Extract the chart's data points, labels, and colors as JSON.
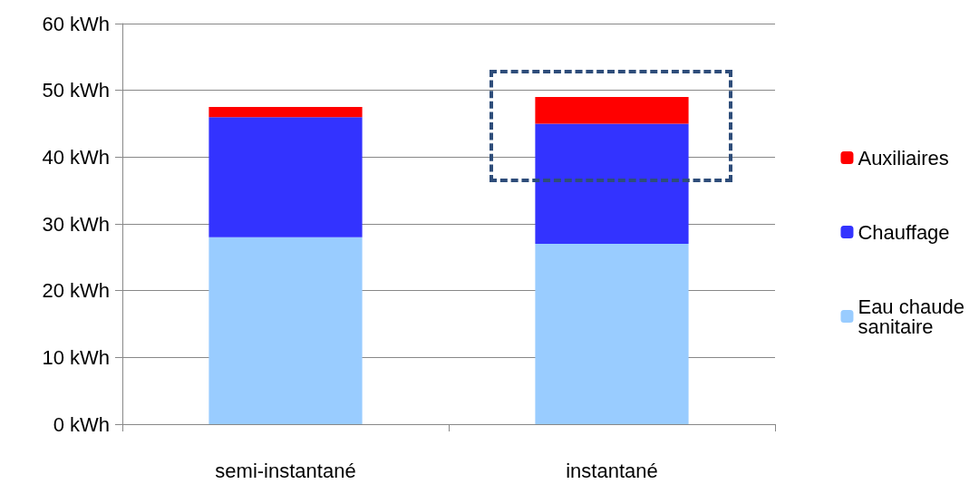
{
  "chart_data": {
    "type": "bar",
    "stacked": true,
    "categories": [
      "semi-instantané",
      "instantané"
    ],
    "series": [
      {
        "name": "Eau chaude sanitaire",
        "color": "#99ccff",
        "values": [
          28,
          27
        ]
      },
      {
        "name": "Chauffage",
        "color": "#3333ff",
        "values": [
          18,
          18
        ]
      },
      {
        "name": "Auxiliaires",
        "color": "#ff0000",
        "values": [
          1.5,
          4
        ]
      }
    ],
    "ylim": [
      0,
      60
    ],
    "yticks": [
      {
        "value": 0,
        "label": "0 kWh"
      },
      {
        "value": 10,
        "label": "10 kWh"
      },
      {
        "value": 20,
        "label": "20 kWh"
      },
      {
        "value": 30,
        "label": "30 kWh"
      },
      {
        "value": 40,
        "label": "40 kWh"
      },
      {
        "value": 50,
        "label": "50 kWh"
      },
      {
        "value": 60,
        "label": "60 kWh"
      }
    ],
    "grid": "y",
    "legend": "right"
  }
}
